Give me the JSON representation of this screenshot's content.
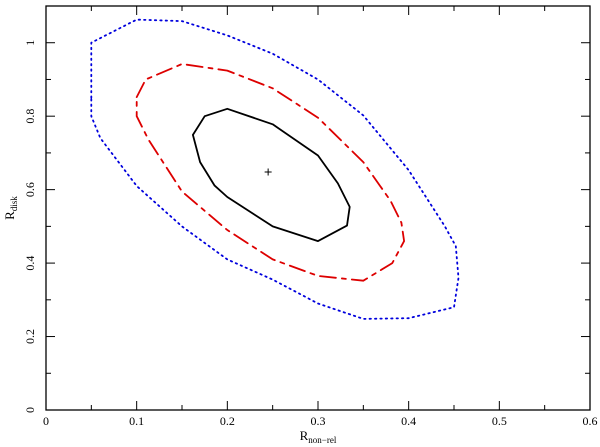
{
  "chart_data": {
    "type": "line",
    "title": "",
    "xlabel": "R",
    "xlabel_sub": "non−rel",
    "ylabel": "R",
    "ylabel_sub": "disk",
    "xlim": [
      0,
      0.6
    ],
    "ylim": [
      0,
      1.1
    ],
    "x_ticks": [
      0,
      0.1,
      0.2,
      0.3,
      0.4,
      0.5,
      0.6
    ],
    "x_tick_labels": [
      "0",
      "0.1",
      "0.2",
      "0.3",
      "0.4",
      "0.5",
      "0.6"
    ],
    "y_ticks": [
      0,
      0.2,
      0.4,
      0.6,
      0.8,
      1.0
    ],
    "y_tick_labels": [
      "0",
      "0.2",
      "0.4",
      "0.6",
      "0.8",
      "1"
    ],
    "grid": false,
    "legend": "none",
    "best_fit": {
      "x": 0.245,
      "y": 0.648
    },
    "series": [
      {
        "style": "solid",
        "color": "#000000",
        "x": [
          0.162,
          0.175,
          0.2,
          0.25,
          0.3,
          0.322,
          0.335,
          0.332,
          0.3,
          0.25,
          0.2,
          0.186,
          0.17,
          0.162
        ],
        "y": [
          0.749,
          0.8,
          0.82,
          0.778,
          0.693,
          0.617,
          0.553,
          0.502,
          0.46,
          0.5,
          0.58,
          0.611,
          0.675,
          0.749
        ]
      },
      {
        "style": "dashed",
        "color": "#dd0000",
        "x": [
          0.1,
          0.11,
          0.15,
          0.2,
          0.25,
          0.3,
          0.35,
          0.38,
          0.392,
          0.395,
          0.382,
          0.35,
          0.3,
          0.25,
          0.2,
          0.15,
          0.113,
          0.1,
          0.1
        ],
        "y": [
          0.852,
          0.9,
          0.942,
          0.924,
          0.876,
          0.796,
          0.675,
          0.57,
          0.51,
          0.46,
          0.4,
          0.352,
          0.365,
          0.41,
          0.49,
          0.595,
          0.736,
          0.8,
          0.852
        ]
      },
      {
        "style": "dotted",
        "color": "#0000dd",
        "x": [
          0.05,
          0.05,
          0.1,
          0.15,
          0.2,
          0.25,
          0.3,
          0.35,
          0.4,
          0.44,
          0.452,
          0.455,
          0.45,
          0.4,
          0.35,
          0.3,
          0.25,
          0.2,
          0.15,
          0.1,
          0.06,
          0.05,
          0.05
        ],
        "y": [
          0.85,
          1.0,
          1.063,
          1.059,
          1.02,
          0.97,
          0.9,
          0.802,
          0.653,
          0.5,
          0.446,
          0.36,
          0.28,
          0.25,
          0.248,
          0.29,
          0.355,
          0.41,
          0.5,
          0.61,
          0.74,
          0.8,
          0.85
        ]
      }
    ]
  }
}
